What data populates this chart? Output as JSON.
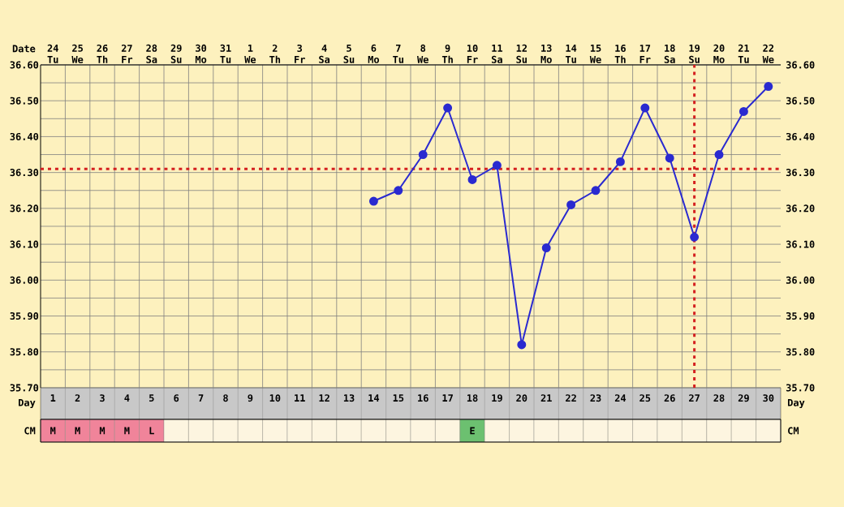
{
  "chart_data": [
    {
      "type": "line",
      "categories": [
        "24 Tu",
        "25 We",
        "26 Th",
        "27 Fr",
        "28 Sa",
        "29 Su",
        "30 Mo",
        "31 Tu",
        "1 We",
        "2 Th",
        "3 Fr",
        "4 Sa",
        "5 Su",
        "6 Mo",
        "7 Tu",
        "8 We",
        "9 Th",
        "10 Fr",
        "11 Sa",
        "12 Su",
        "13 Mo",
        "14 Tu",
        "15 We",
        "16 Th",
        "17 Fr",
        "18 Sa",
        "19 Su",
        "20 Mo",
        "21 Tu",
        "22 We"
      ],
      "series": [
        {
          "color": "#2a2ad0",
          "values": [
            null,
            null,
            null,
            null,
            null,
            null,
            null,
            null,
            null,
            null,
            null,
            null,
            null,
            36.22,
            36.25,
            36.35,
            36.48,
            36.28,
            36.32,
            35.82,
            36.09,
            36.21,
            36.25,
            36.33,
            36.48,
            36.34,
            36.12,
            36.35,
            36.47,
            36.54
          ]
        }
      ],
      "xlabel": "Date",
      "x2label": "Day",
      "x2lim": [
        0.5,
        30.5
      ],
      "x2ticks": [
        1,
        2,
        3,
        4,
        5,
        6,
        7,
        8,
        9,
        10,
        11,
        12,
        13,
        14,
        15,
        16,
        17,
        18,
        19,
        20,
        21,
        22,
        23,
        24,
        25,
        26,
        27,
        28,
        29,
        30
      ],
      "ylim": [
        35.7,
        36.6
      ],
      "yticks": [
        {
          "value": 35.7,
          "label": "35.70"
        },
        {
          "value": 35.8,
          "label": "35.80"
        },
        {
          "value": 35.9,
          "label": "35.90"
        },
        {
          "value": 36.0,
          "label": "36.00"
        },
        {
          "value": 36.1,
          "label": "36.10"
        },
        {
          "value": 36.2,
          "label": "36.20"
        },
        {
          "value": 36.3,
          "label": "36.30"
        },
        {
          "value": 36.4,
          "label": "36.40"
        },
        {
          "value": 36.5,
          "label": "36.50"
        },
        {
          "value": 36.6,
          "label": "36.60"
        }
      ],
      "y2lim": [
        35.7,
        36.6
      ],
      "y2ticks": [
        {
          "value": 35.7,
          "label": "35.70"
        },
        {
          "value": 35.8,
          "label": "35.80"
        },
        {
          "value": 35.9,
          "label": "35.90"
        },
        {
          "value": 36.0,
          "label": "36.00"
        },
        {
          "value": 36.1,
          "label": "36.10"
        },
        {
          "value": 36.2,
          "label": "36.20"
        },
        {
          "value": 36.3,
          "label": "36.30"
        },
        {
          "value": 36.4,
          "label": "36.40"
        },
        {
          "value": 36.5,
          "label": "36.50"
        },
        {
          "value": 36.6,
          "label": "36.60"
        }
      ],
      "ref_lines": [
        {
          "axis": "y",
          "value": 36.31,
          "color": "#d42020",
          "line_style": "dotted"
        },
        {
          "axis": "x",
          "value": "19 Su",
          "color": "#d42020",
          "line_style": "dotted"
        }
      ],
      "grid": true,
      "marker": "circle",
      "line_style": "solid"
    },
    {
      "type": "other",
      "ylabel": "CM",
      "categories": [
        "M",
        "M",
        "M",
        "M",
        "L",
        null,
        null,
        null,
        null,
        null,
        null,
        null,
        null,
        null,
        null,
        null,
        null,
        "E",
        null,
        null,
        null,
        null,
        null,
        null,
        null,
        null,
        null,
        null,
        null,
        null
      ],
      "colors": [
        "#f0849a",
        "#f0849a",
        "#f0849a",
        "#f0849a",
        "#f0849a",
        "#fdf5e0",
        "#fdf5e0",
        "#fdf5e0",
        "#fdf5e0",
        "#fdf5e0",
        "#fdf5e0",
        "#fdf5e0",
        "#fdf5e0",
        "#fdf5e0",
        "#fdf5e0",
        "#fdf5e0",
        "#fdf5e0",
        "#6cc070",
        "#fdf5e0",
        "#fdf5e0",
        "#fdf5e0",
        "#fdf5e0",
        "#fdf5e0",
        "#fdf5e0",
        "#fdf5e0",
        "#fdf5e0",
        "#fdf5e0",
        "#fdf5e0",
        "#fdf5e0",
        "#fdf5e0"
      ]
    }
  ]
}
